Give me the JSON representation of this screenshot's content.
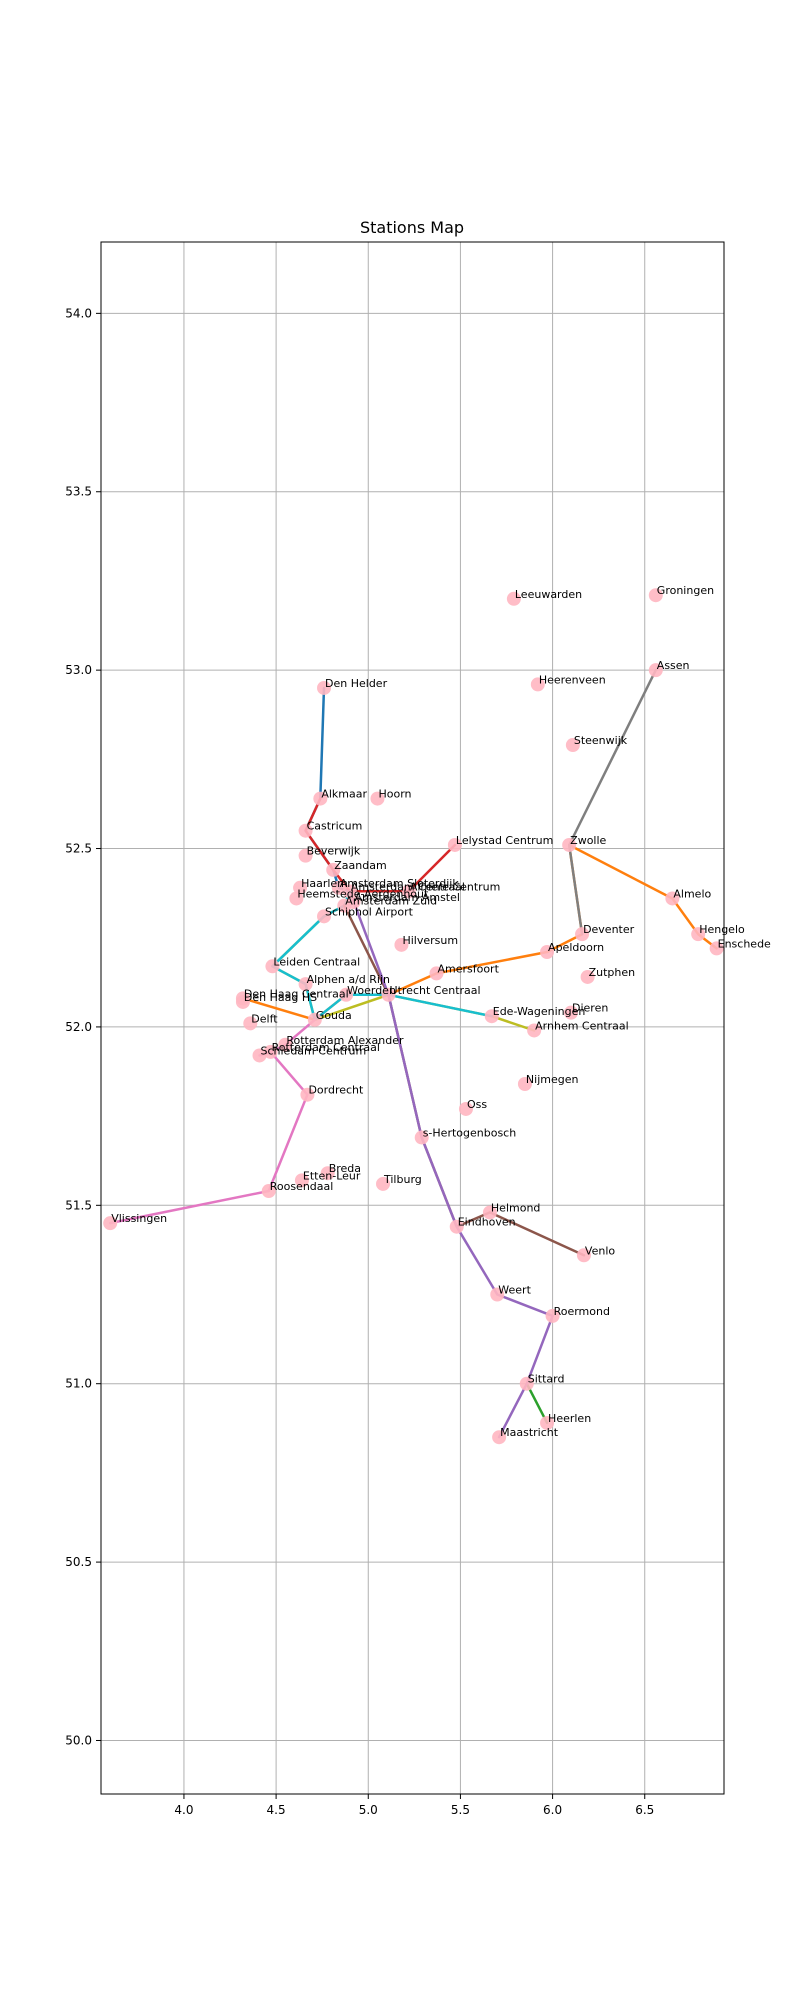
{
  "chart_data": {
    "type": "scatter",
    "title": "Stations Map",
    "xlabel": "",
    "ylabel": "",
    "xlim": [
      3.55,
      6.93
    ],
    "ylim": [
      49.85,
      54.2
    ],
    "xticks": [
      4.0,
      4.5,
      5.0,
      5.5,
      6.0,
      6.5
    ],
    "yticks": [
      50.0,
      50.5,
      51.0,
      51.5,
      52.0,
      52.5,
      53.0,
      53.5,
      54.0
    ],
    "grid": true,
    "marker_color": "#ffb6c1",
    "stations": [
      {
        "name": "Groningen",
        "x": 6.56,
        "y": 53.21
      },
      {
        "name": "Leeuwarden",
        "x": 5.79,
        "y": 53.2
      },
      {
        "name": "Assen",
        "x": 6.56,
        "y": 53.0
      },
      {
        "name": "Heerenveen",
        "x": 5.92,
        "y": 52.96
      },
      {
        "name": "Den Helder",
        "x": 4.76,
        "y": 52.95
      },
      {
        "name": "Steenwijk",
        "x": 6.11,
        "y": 52.79
      },
      {
        "name": "Alkmaar",
        "x": 4.74,
        "y": 52.64
      },
      {
        "name": "Hoorn",
        "x": 5.05,
        "y": 52.64
      },
      {
        "name": "Castricum",
        "x": 4.66,
        "y": 52.55
      },
      {
        "name": "Lelystad Centrum",
        "x": 5.47,
        "y": 52.51
      },
      {
        "name": "Zwolle",
        "x": 6.09,
        "y": 52.51
      },
      {
        "name": "Beverwijk",
        "x": 4.66,
        "y": 52.48
      },
      {
        "name": "Zaandam",
        "x": 4.81,
        "y": 52.44
      },
      {
        "name": "Haarlem",
        "x": 4.63,
        "y": 52.39
      },
      {
        "name": "Amsterdam Sloterdijk",
        "x": 4.84,
        "y": 52.39
      },
      {
        "name": "Amsterdam Centraal",
        "x": 4.9,
        "y": 52.38
      },
      {
        "name": "Almere Centrum",
        "x": 5.22,
        "y": 52.38
      },
      {
        "name": "Amsterdam Amstel",
        "x": 4.92,
        "y": 52.35
      },
      {
        "name": "Almelo",
        "x": 6.65,
        "y": 52.36
      },
      {
        "name": "Heemstede-Aerdenhout",
        "x": 4.61,
        "y": 52.36
      },
      {
        "name": "Amsterdam Zuid",
        "x": 4.87,
        "y": 52.34
      },
      {
        "name": "Schiphol Airport",
        "x": 4.76,
        "y": 52.31
      },
      {
        "name": "Deventer",
        "x": 6.16,
        "y": 52.26
      },
      {
        "name": "Hengelo",
        "x": 6.79,
        "y": 52.26
      },
      {
        "name": "Hilversum",
        "x": 5.18,
        "y": 52.23
      },
      {
        "name": "Enschede",
        "x": 6.89,
        "y": 52.22
      },
      {
        "name": "Apeldoorn",
        "x": 5.97,
        "y": 52.21
      },
      {
        "name": "Leiden Centraal",
        "x": 4.48,
        "y": 52.17
      },
      {
        "name": "Amersfoort",
        "x": 5.37,
        "y": 52.15
      },
      {
        "name": "Zutphen",
        "x": 6.19,
        "y": 52.14
      },
      {
        "name": "Alphen a/d Rijn",
        "x": 4.66,
        "y": 52.12
      },
      {
        "name": "Utrecht Centraal",
        "x": 5.11,
        "y": 52.09
      },
      {
        "name": "Den Haag HS",
        "x": 4.32,
        "y": 52.07
      },
      {
        "name": "Den Haag Centraal",
        "x": 4.32,
        "y": 52.08
      },
      {
        "name": "Woerden",
        "x": 4.88,
        "y": 52.09
      },
      {
        "name": "Dieren",
        "x": 6.1,
        "y": 52.04
      },
      {
        "name": "Ede-Wageningen",
        "x": 5.67,
        "y": 52.03
      },
      {
        "name": "Gouda",
        "x": 4.71,
        "y": 52.02
      },
      {
        "name": "Delft",
        "x": 4.36,
        "y": 52.01
      },
      {
        "name": "Arnhem Centraal",
        "x": 5.9,
        "y": 51.99
      },
      {
        "name": "Rotterdam Alexander",
        "x": 4.55,
        "y": 51.95
      },
      {
        "name": "Rotterdam Centraal",
        "x": 4.47,
        "y": 51.93
      },
      {
        "name": "Schiedam Centrum",
        "x": 4.41,
        "y": 51.92
      },
      {
        "name": "Nijmegen",
        "x": 5.85,
        "y": 51.84
      },
      {
        "name": "Dordrecht",
        "x": 4.67,
        "y": 51.81
      },
      {
        "name": "Oss",
        "x": 5.53,
        "y": 51.77
      },
      {
        "name": "s-Hertogenbosch",
        "x": 5.29,
        "y": 51.69
      },
      {
        "name": "Breda",
        "x": 4.78,
        "y": 51.59
      },
      {
        "name": "Etten-Leur",
        "x": 4.64,
        "y": 51.57
      },
      {
        "name": "Tilburg",
        "x": 5.08,
        "y": 51.56
      },
      {
        "name": "Roosendaal",
        "x": 4.46,
        "y": 51.54
      },
      {
        "name": "Helmond",
        "x": 5.66,
        "y": 51.48
      },
      {
        "name": "Vlissingen",
        "x": 3.6,
        "y": 51.45
      },
      {
        "name": "Eindhoven",
        "x": 5.48,
        "y": 51.44
      },
      {
        "name": "Venlo",
        "x": 6.17,
        "y": 51.36
      },
      {
        "name": "Weert",
        "x": 5.7,
        "y": 51.25
      },
      {
        "name": "Roermond",
        "x": 6.0,
        "y": 51.19
      },
      {
        "name": "Sittard",
        "x": 5.86,
        "y": 51.0
      },
      {
        "name": "Heerlen",
        "x": 5.97,
        "y": 50.89
      },
      {
        "name": "Maastricht",
        "x": 5.71,
        "y": 50.85
      }
    ],
    "routes": [
      {
        "color": "#1f77b4",
        "stops": [
          "Den Helder",
          "Alkmaar",
          "Castricum",
          "Zaandam",
          "Amsterdam Sloterdijk",
          "Amsterdam Centraal"
        ]
      },
      {
        "color": "#d62728",
        "stops": [
          "Alkmaar",
          "Castricum",
          "Zaandam",
          "Amsterdam Centraal",
          "Almere Centrum",
          "Lelystad Centrum"
        ]
      },
      {
        "color": "#ff7f0e",
        "stops": [
          "Enschede",
          "Hengelo",
          "Almelo",
          "Zwolle",
          "Deventer",
          "Apeldoorn",
          "Amersfoort",
          "Utrecht Centraal",
          "Woerden",
          "Gouda",
          "Den Haag Centraal"
        ]
      },
      {
        "color": "#7f7f7f",
        "stops": [
          "Assen",
          "Zwolle",
          "Deventer"
        ]
      },
      {
        "color": "#bcbd22",
        "stops": [
          "Arnhem Centraal",
          "Ede-Wageningen",
          "Utrecht Centraal",
          "Gouda",
          "Alphen a/d Rijn",
          "Leiden Centraal",
          "Schiphol Airport",
          "Amsterdam Zuid"
        ]
      },
      {
        "color": "#17becf",
        "stops": [
          "Amsterdam Centraal",
          "Amsterdam Zuid",
          "Schiphol Airport",
          "Leiden Centraal",
          "Alphen a/d Rijn",
          "Gouda",
          "Woerden",
          "Utrecht Centraal",
          "Ede-Wageningen"
        ]
      },
      {
        "color": "#2ca02c",
        "stops": [
          "Heerlen",
          "Sittard"
        ]
      },
      {
        "color": "#8c564b",
        "stops": [
          "Amsterdam Zuid",
          "Utrecht Centraal",
          "s-Hertogenbosch",
          "Eindhoven",
          "Helmond",
          "Venlo"
        ]
      },
      {
        "color": "#9467bd",
        "stops": [
          "Amsterdam Centraal",
          "Utrecht Centraal",
          "s-Hertogenbosch",
          "Eindhoven",
          "Weert",
          "Roermond",
          "Sittard",
          "Maastricht"
        ]
      },
      {
        "color": "#e377c2",
        "stops": [
          "Vlissingen",
          "Roosendaal",
          "Dordrecht",
          "Rotterdam Centraal",
          "Schiedam Centrum"
        ]
      },
      {
        "color": "#e377c2",
        "stops": [
          "Rotterdam Centraal",
          "Rotterdam Alexander",
          "Gouda"
        ]
      }
    ]
  }
}
